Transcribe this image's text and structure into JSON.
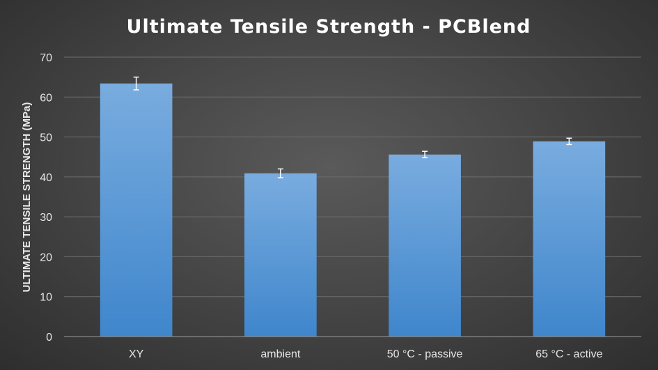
{
  "chart_data": {
    "type": "bar",
    "title": "Ultimate Tensile Strength - PCBlend",
    "xlabel": "",
    "ylabel": "ULTIMATE TENSILE STRENGTH (MPa)",
    "ylim": [
      0,
      70
    ],
    "yticks": [
      "0",
      "10",
      "20",
      "30",
      "40",
      "50",
      "60",
      "70"
    ],
    "categories": [
      "XY",
      "ambient",
      "50 °C - passive",
      "65 °C - active"
    ],
    "values": [
      63.4,
      40.9,
      45.6,
      48.9
    ],
    "error": [
      1.6,
      1.1,
      0.8,
      0.8
    ],
    "grid": true,
    "legend": "none",
    "colors": {
      "bar_top": "#79acdf",
      "bar_bottom": "#3f86cc"
    }
  }
}
